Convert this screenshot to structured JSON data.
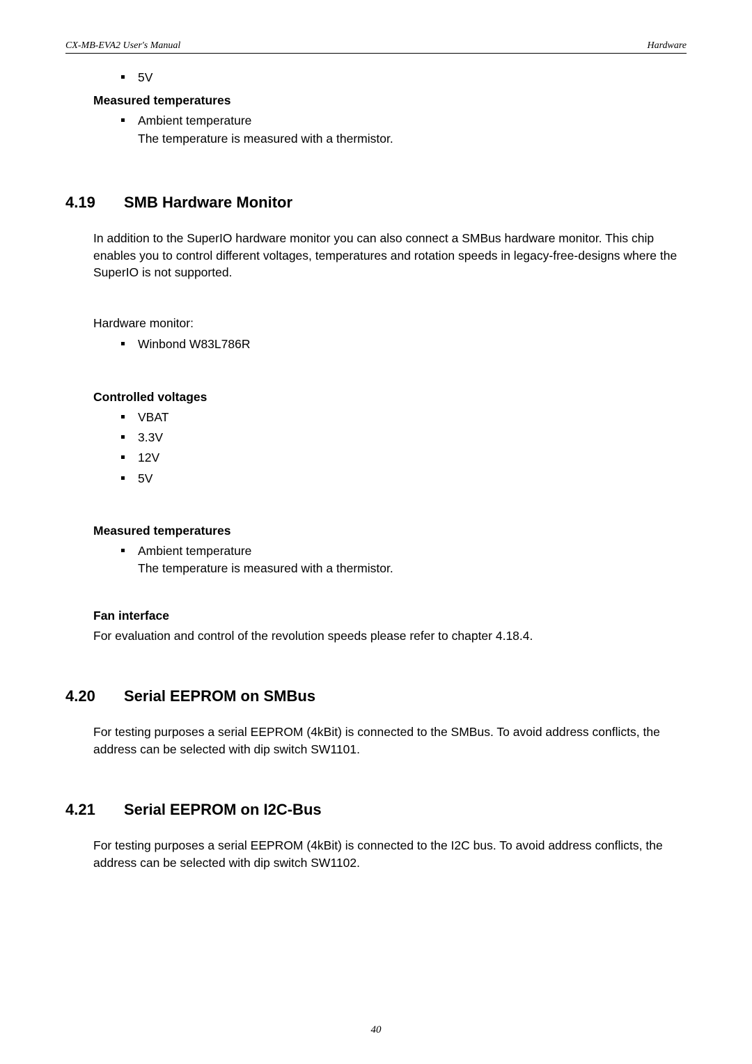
{
  "header": {
    "left": "CX-MB-EVA2  User's Manual",
    "right": "Hardware"
  },
  "top_list": {
    "item1": "5V"
  },
  "meas_temp_a": {
    "heading": "Measured temperatures",
    "item1_line1": "Ambient temperature",
    "item1_line2": "The temperature is measured with a thermistor."
  },
  "sec419": {
    "num": "4.19",
    "title": "SMB Hardware Monitor",
    "para": "In addition to the SuperIO hardware monitor you can also connect a SMBus hardware monitor. This chip enables you to control different voltages, temperatures and rotation speeds in legacy-free-designs where the SuperIO is not supported.",
    "hwmon_label": "Hardware monitor:",
    "hwmon_item1": "Winbond W83L786R",
    "cv_heading": "Controlled voltages",
    "cv1": "VBAT",
    "cv2": "3.3V",
    "cv3": "12V",
    "cv4": "5V",
    "mt_heading": "Measured temperatures",
    "mt_item1_l1": "Ambient temperature",
    "mt_item1_l2": "The temperature is measured with a thermistor.",
    "fan_heading": "Fan interface",
    "fan_para": "For evaluation and control of the revolution speeds please refer to chapter 4.18.4."
  },
  "sec420": {
    "num": "4.20",
    "title": "Serial EEPROM on SMBus",
    "para": "For testing purposes a serial EEPROM (4kBit) is connected to the SMBus. To avoid address conflicts, the address can be selected with dip switch SW1101."
  },
  "sec421": {
    "num": "4.21",
    "title": "Serial EEPROM on I2C-Bus",
    "para": "For testing purposes a serial EEPROM (4kBit) is connected to the I2C bus. To avoid address conflicts, the address can be selected with dip switch SW1102."
  },
  "page_number": "40"
}
